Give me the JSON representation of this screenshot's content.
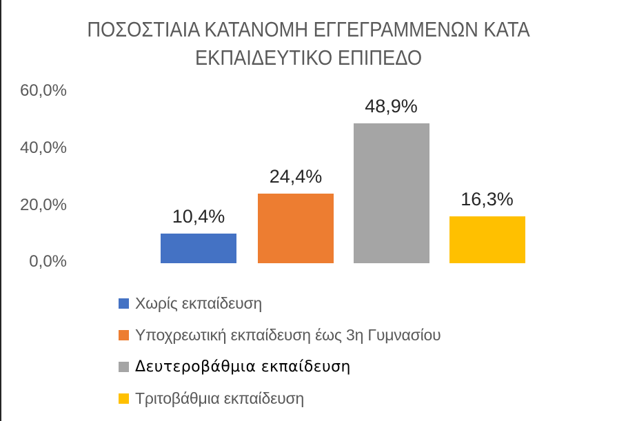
{
  "page": {
    "background_color": "#ffffff",
    "left_edge_line_color": "#262626"
  },
  "chart_data": {
    "type": "bar",
    "title": "ΠΟΣΟΣΤΙΑΙΑ ΚΑΤΑΝΟΜΗ ΕΓΓΕΓΡΑΜΜΕΝΩΝ ΚΑΤΑ ΕΚΠΑΙΔΕΥΤΙΚΟ ΕΠΙΠΕΔΟ",
    "title_lines": [
      "ΠΟΣΟΣΤΙΑΙΑ ΚΑΤΑΝΟΜΗ ΕΓΓΕΓΡΑΜΜΕΝΩΝ ΚΑΤΑ",
      "ΕΚΠΑΙΔΕΥΤΙΚΟ ΕΠΙΠΕΔΟ"
    ],
    "title_color": "#595959",
    "categories": [
      "Χωρίς εκπαίδευση",
      "Υποχρεωτική εκπαίδευση έως 3η Γυμνασίου",
      "Δευτεροβάθμια εκπαίδευση",
      "Τριτοβάθμια εκπαίδευση"
    ],
    "values": [
      10.4,
      24.4,
      48.9,
      16.3
    ],
    "value_labels": [
      "10,4%",
      "24,4%",
      "48,9%",
      "16,3%"
    ],
    "colors": [
      "#4472C4",
      "#ED7D31",
      "#A5A5A5",
      "#FFC000"
    ],
    "y_ticks": [
      "60,0%",
      "40,0%",
      "20,0%",
      "0,0%"
    ],
    "ylim": [
      0,
      60
    ],
    "grid": false,
    "axis_text_color": "#595959",
    "data_label_color": "#262626",
    "legend_position": "bottom-left",
    "legend": [
      {
        "label": "Χωρίς εκπαίδευση",
        "color": "#4472C4",
        "emphasis": false
      },
      {
        "label": "Υποχρεωτική εκπαίδευση έως 3η Γυμνασίου",
        "color": "#ED7D31",
        "emphasis": false
      },
      {
        "label": "Δευτεροβάθμια εκπαίδευση",
        "color": "#A5A5A5",
        "emphasis": true
      },
      {
        "label": "Τριτοβάθμια εκπαίδευση",
        "color": "#FFC000",
        "emphasis": false
      }
    ]
  }
}
